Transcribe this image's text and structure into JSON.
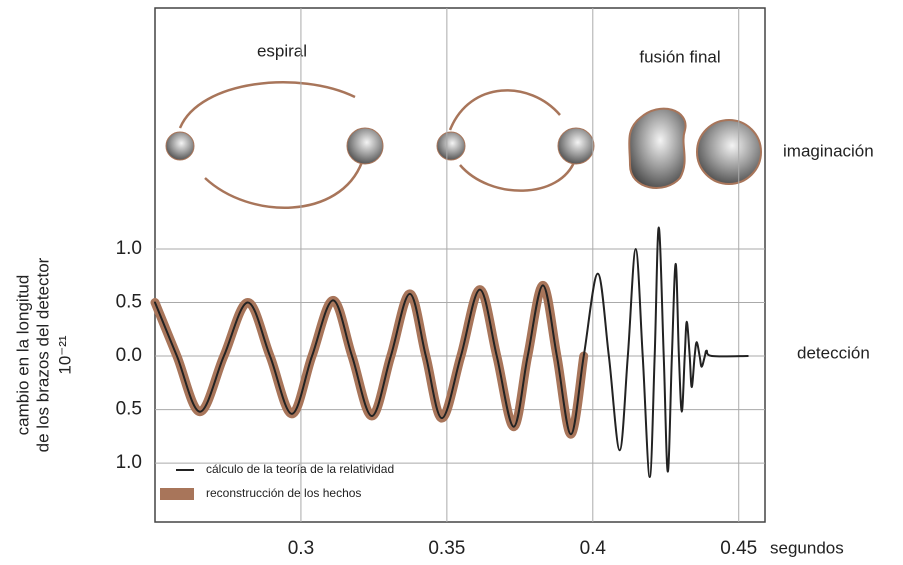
{
  "chart_data": {
    "type": "line",
    "annotations": {
      "spiral": "espiral",
      "merger": "fusión final",
      "imagination": "imaginación",
      "detection": "detección"
    },
    "x_label": "segundos",
    "y_label": [
      "cambio en la longitud",
      "de los brazos del detector",
      "10⁻²¹"
    ],
    "x": [
      0.25,
      0.2575,
      0.2654,
      0.2736,
      0.2818,
      0.2894,
      0.2969,
      0.3038,
      0.311,
      0.3175,
      0.3243,
      0.3308,
      0.3373,
      0.3428,
      0.3483,
      0.3548,
      0.3613,
      0.3671,
      0.3729,
      0.3777,
      0.3829,
      0.3877,
      0.3925,
      0.3969,
      0.4017,
      0.4055,
      0.4092,
      0.412,
      0.4147,
      0.4171,
      0.4195,
      0.4212,
      0.4226,
      0.4243,
      0.4257,
      0.4271,
      0.4284,
      0.4295,
      0.4305,
      0.4315,
      0.4322,
      0.4332,
      0.4339,
      0.4349,
      0.4356,
      0.4366,
      0.4373,
      0.4384,
      0.439,
      0.4408,
      0.4531
    ],
    "series": [
      {
        "name": "reconstrucción de los hechos",
        "color": "#a8755a",
        "width": 9,
        "values": [
          0.5,
          0,
          -0.52,
          0,
          0.5,
          0,
          -0.54,
          0,
          0.52,
          0,
          -0.56,
          0,
          0.58,
          0,
          -0.58,
          0,
          0.62,
          0,
          -0.66,
          0,
          0.66,
          0,
          -0.73,
          0,
          null,
          null,
          null,
          null,
          null,
          null,
          null,
          null,
          null,
          null,
          null,
          null,
          null,
          null,
          null,
          null,
          null,
          null,
          null,
          null,
          null,
          null,
          null,
          null,
          null,
          null,
          null
        ]
      },
      {
        "name": "cálculo de la teoría de la relatividad",
        "color": "#222222",
        "width": 2,
        "values": [
          0.5,
          0,
          -0.52,
          0,
          0.5,
          0,
          -0.54,
          0,
          0.52,
          0,
          -0.56,
          0,
          0.58,
          0,
          -0.58,
          0,
          0.62,
          0,
          -0.66,
          0,
          0.66,
          0,
          -0.73,
          0,
          0.77,
          0,
          -0.88,
          0,
          1.0,
          0,
          -1.13,
          0,
          1.2,
          0,
          -1.08,
          0,
          0.86,
          0,
          -0.52,
          0,
          0.32,
          0,
          -0.29,
          0,
          0.13,
          0,
          -0.1,
          0,
          0.05,
          0,
          0
        ]
      }
    ],
    "xlim": [
      0.25,
      0.459
    ],
    "xticks": [
      0.3,
      0.35,
      0.4,
      0.45
    ],
    "ylim": [
      -1.55,
      3.25
    ],
    "yticks": [
      {
        "value": 1.0,
        "label": "1.0"
      },
      {
        "value": 0.5,
        "label": "0.5"
      },
      {
        "value": 0,
        "label": "0.0"
      },
      {
        "value": -0.5,
        "label": "0.5"
      },
      {
        "value": -1.0,
        "label": "1.0"
      }
    ],
    "grid": true,
    "legend": "lower left"
  }
}
